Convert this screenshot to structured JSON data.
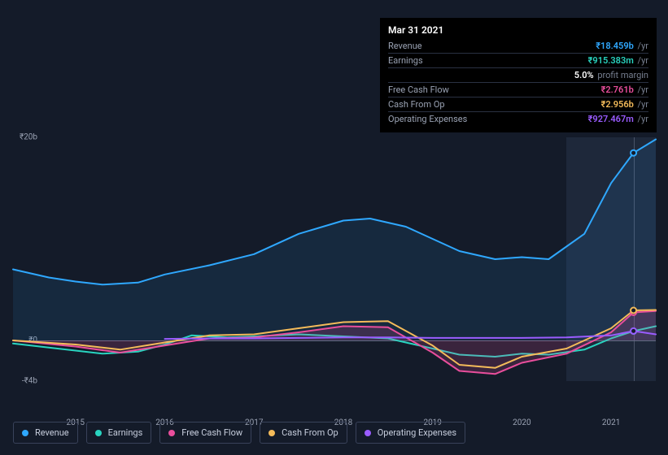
{
  "tooltip": {
    "date": "Mar 31 2021",
    "rows": [
      {
        "label": "Revenue",
        "num": "18.459b",
        "unit": "/yr",
        "color": "#2fa8ff",
        "prefix": "₹"
      },
      {
        "label": "Earnings",
        "num": "915.383m",
        "unit": "/yr",
        "color": "#29d4c0",
        "prefix": "₹"
      },
      {
        "label": "",
        "num": "5.0%",
        "unit": "profit margin",
        "color": "#ffffff",
        "prefix": ""
      },
      {
        "label": "Free Cash Flow",
        "num": "2.761b",
        "unit": "/yr",
        "color": "#e94e9c",
        "prefix": "₹"
      },
      {
        "label": "Cash From Op",
        "num": "2.956b",
        "unit": "/yr",
        "color": "#f4bb5a",
        "prefix": "₹"
      },
      {
        "label": "Operating Expenses",
        "num": "927.467m",
        "unit": "/yr",
        "color": "#9a5cff",
        "prefix": "₹"
      }
    ]
  },
  "chart": {
    "type": "line",
    "background_color": "#141b29",
    "grid_color": "#39425a",
    "text_color": "#9aa2b3",
    "y": {
      "min": -4,
      "max": 20,
      "ticks": [
        {
          "v": 20,
          "label": "₹20b"
        },
        {
          "v": 0,
          "label": "₹0"
        },
        {
          "v": -4,
          "label": "-₹4b"
        }
      ]
    },
    "x": {
      "min": 2014.3,
      "max": 2021.5,
      "ticks": [
        2015,
        2016,
        2017,
        2018,
        2019,
        2020,
        2021
      ]
    },
    "marker_x": 2021.25,
    "highlight_band": {
      "from": 2020.5,
      "to": 2021.5
    },
    "series": [
      {
        "name": "Revenue",
        "color": "#2fa8ff",
        "width": 2,
        "fill": "rgba(47,168,255,0.10)",
        "data": [
          [
            2014.3,
            7.0
          ],
          [
            2014.7,
            6.2
          ],
          [
            2015.0,
            5.8
          ],
          [
            2015.3,
            5.5
          ],
          [
            2015.7,
            5.7
          ],
          [
            2016.0,
            6.5
          ],
          [
            2016.5,
            7.4
          ],
          [
            2017.0,
            8.5
          ],
          [
            2017.5,
            10.5
          ],
          [
            2018.0,
            11.8
          ],
          [
            2018.3,
            12.0
          ],
          [
            2018.7,
            11.2
          ],
          [
            2019.0,
            10.0
          ],
          [
            2019.3,
            8.8
          ],
          [
            2019.7,
            8.0
          ],
          [
            2020.0,
            8.2
          ],
          [
            2020.3,
            8.0
          ],
          [
            2020.7,
            10.5
          ],
          [
            2021.0,
            15.5
          ],
          [
            2021.25,
            18.46
          ],
          [
            2021.5,
            19.8
          ]
        ]
      },
      {
        "name": "Earnings",
        "color": "#29d4c0",
        "width": 2,
        "data": [
          [
            2014.3,
            -0.3
          ],
          [
            2014.7,
            -0.7
          ],
          [
            2015.0,
            -1.0
          ],
          [
            2015.3,
            -1.3
          ],
          [
            2015.7,
            -1.1
          ],
          [
            2016.0,
            -0.4
          ],
          [
            2016.3,
            0.5
          ],
          [
            2016.7,
            0.3
          ],
          [
            2017.0,
            0.4
          ],
          [
            2017.5,
            0.6
          ],
          [
            2018.0,
            0.4
          ],
          [
            2018.5,
            0.2
          ],
          [
            2019.0,
            -0.8
          ],
          [
            2019.3,
            -1.4
          ],
          [
            2019.7,
            -1.6
          ],
          [
            2020.0,
            -1.3
          ],
          [
            2020.3,
            -1.4
          ],
          [
            2020.7,
            -0.9
          ],
          [
            2021.0,
            0.2
          ],
          [
            2021.25,
            0.92
          ],
          [
            2021.5,
            1.4
          ]
        ]
      },
      {
        "name": "Free Cash Flow",
        "color": "#e94e9c",
        "width": 2,
        "fill": "rgba(233,78,156,0.18)",
        "data": [
          [
            2014.3,
            0.0
          ],
          [
            2015.0,
            -0.6
          ],
          [
            2015.5,
            -1.2
          ],
          [
            2016.0,
            -0.5
          ],
          [
            2016.5,
            0.2
          ],
          [
            2017.0,
            0.3
          ],
          [
            2017.5,
            0.8
          ],
          [
            2018.0,
            1.4
          ],
          [
            2018.5,
            1.3
          ],
          [
            2019.0,
            -1.2
          ],
          [
            2019.3,
            -3.0
          ],
          [
            2019.7,
            -3.3
          ],
          [
            2020.0,
            -2.2
          ],
          [
            2020.5,
            -1.3
          ],
          [
            2021.0,
            0.8
          ],
          [
            2021.25,
            2.76
          ],
          [
            2021.5,
            2.9
          ]
        ]
      },
      {
        "name": "Cash From Op",
        "color": "#f4bb5a",
        "width": 2,
        "data": [
          [
            2014.3,
            0.0
          ],
          [
            2015.0,
            -0.4
          ],
          [
            2015.5,
            -0.9
          ],
          [
            2016.0,
            -0.2
          ],
          [
            2016.5,
            0.5
          ],
          [
            2017.0,
            0.6
          ],
          [
            2017.5,
            1.2
          ],
          [
            2018.0,
            1.8
          ],
          [
            2018.5,
            1.9
          ],
          [
            2019.0,
            -0.5
          ],
          [
            2019.3,
            -2.4
          ],
          [
            2019.7,
            -2.7
          ],
          [
            2020.0,
            -1.6
          ],
          [
            2020.5,
            -0.8
          ],
          [
            2021.0,
            1.2
          ],
          [
            2021.25,
            2.96
          ],
          [
            2021.5,
            3.0
          ]
        ]
      },
      {
        "name": "Operating Expenses",
        "color": "#9a5cff",
        "width": 2,
        "data": [
          [
            2016.0,
            0.15
          ],
          [
            2016.5,
            0.2
          ],
          [
            2017.0,
            0.2
          ],
          [
            2017.5,
            0.25
          ],
          [
            2018.0,
            0.3
          ],
          [
            2018.5,
            0.3
          ],
          [
            2019.0,
            0.25
          ],
          [
            2019.5,
            0.25
          ],
          [
            2020.0,
            0.25
          ],
          [
            2020.5,
            0.3
          ],
          [
            2021.0,
            0.5
          ],
          [
            2021.25,
            0.93
          ],
          [
            2021.5,
            0.6
          ]
        ]
      }
    ]
  },
  "legend": [
    {
      "label": "Revenue",
      "color": "#2fa8ff"
    },
    {
      "label": "Earnings",
      "color": "#29d4c0"
    },
    {
      "label": "Free Cash Flow",
      "color": "#e94e9c"
    },
    {
      "label": "Cash From Op",
      "color": "#f4bb5a"
    },
    {
      "label": "Operating Expenses",
      "color": "#9a5cff"
    }
  ]
}
